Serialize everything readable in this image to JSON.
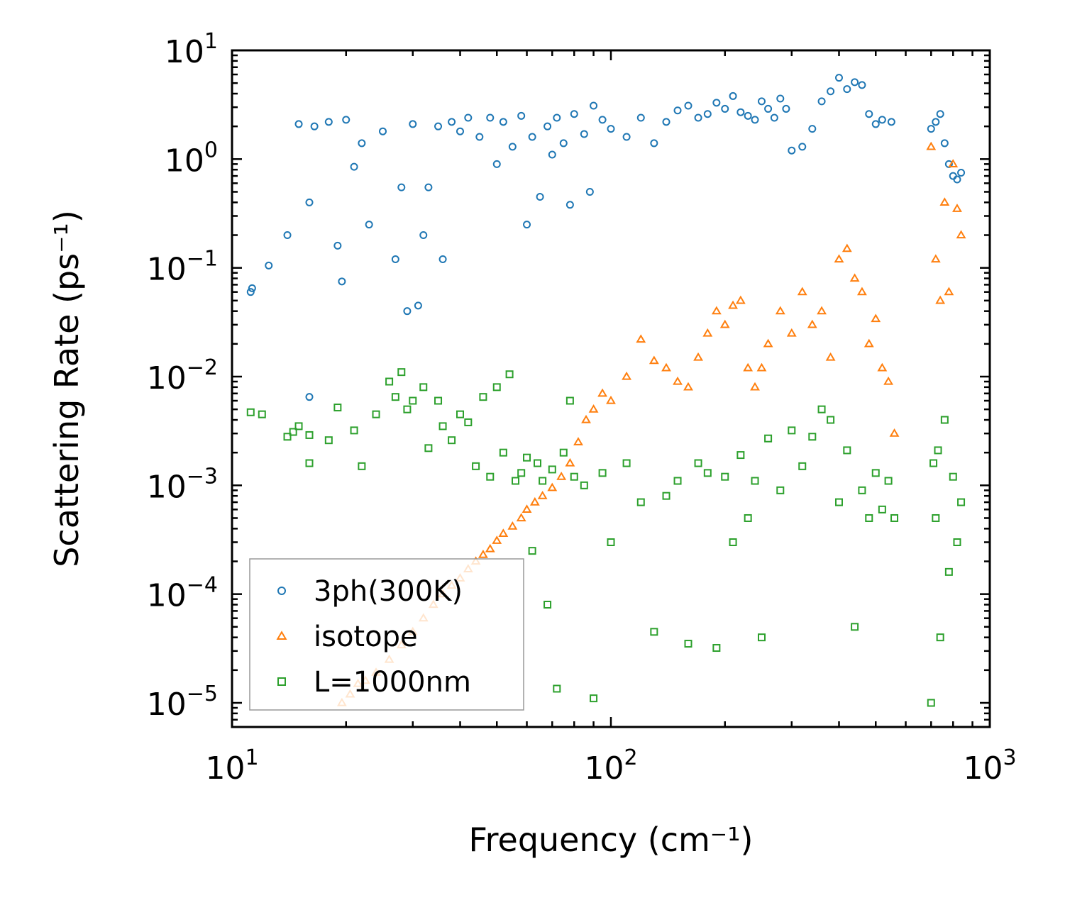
{
  "chart_data": {
    "type": "scatter",
    "title": "",
    "xlabel": "Frequency (cm⁻¹)",
    "ylabel": "Scattering Rate (ps⁻¹)",
    "xscale": "log",
    "yscale": "log",
    "xlim": [
      10,
      1000
    ],
    "ylim": [
      6e-06,
      10
    ],
    "x_ticks": [
      {
        "value": 10,
        "base": "10",
        "exp": "1"
      },
      {
        "value": 100,
        "base": "10",
        "exp": "2"
      },
      {
        "value": 1000,
        "base": "10",
        "exp": "3"
      }
    ],
    "y_ticks": [
      {
        "value": 10,
        "base": "10",
        "exp": "1"
      },
      {
        "value": 1,
        "base": "10",
        "exp": "0"
      },
      {
        "value": 0.1,
        "base": "10",
        "exp": "−1"
      },
      {
        "value": 0.01,
        "base": "10",
        "exp": "−2"
      },
      {
        "value": 0.001,
        "base": "10",
        "exp": "−3"
      },
      {
        "value": 0.0001,
        "base": "10",
        "exp": "−4"
      },
      {
        "value": 1e-05,
        "base": "10",
        "exp": "−5"
      }
    ],
    "grid": false,
    "legend_position": "bottom-left",
    "series": [
      {
        "name": "3ph(300K)",
        "marker": "circle",
        "color": "#1f77b4",
        "x": [
          11.2,
          11.3,
          12.5,
          14,
          15,
          16,
          16,
          16.5,
          18,
          19,
          19.5,
          20,
          21,
          22,
          23,
          25,
          27,
          28,
          29,
          30,
          31,
          32,
          33,
          35,
          36,
          38,
          40,
          42,
          45,
          48,
          50,
          52,
          55,
          58,
          60,
          62,
          65,
          68,
          70,
          72,
          75,
          78,
          80,
          85,
          88,
          90,
          95,
          100,
          110,
          120,
          130,
          140,
          150,
          160,
          170,
          180,
          190,
          200,
          210,
          220,
          230,
          240,
          250,
          260,
          270,
          280,
          290,
          300,
          320,
          340,
          360,
          380,
          400,
          420,
          440,
          460,
          480,
          500,
          520,
          550,
          700,
          720,
          740,
          760,
          780,
          800,
          820,
          840
        ],
        "y": [
          0.06,
          0.065,
          0.105,
          0.2,
          2.1,
          0.4,
          0.0065,
          2.0,
          2.2,
          0.16,
          0.075,
          2.3,
          0.85,
          1.4,
          0.25,
          1.8,
          0.12,
          0.55,
          0.04,
          2.1,
          0.045,
          0.2,
          0.55,
          2.0,
          0.12,
          2.2,
          1.8,
          2.4,
          1.6,
          2.4,
          0.9,
          2.2,
          1.3,
          2.5,
          0.25,
          1.6,
          0.45,
          2.0,
          1.1,
          2.4,
          1.4,
          0.38,
          2.6,
          1.7,
          0.5,
          3.1,
          2.3,
          1.9,
          1.6,
          2.4,
          1.4,
          2.2,
          2.8,
          3.1,
          2.4,
          2.6,
          3.3,
          2.9,
          3.8,
          2.7,
          2.5,
          2.3,
          3.4,
          2.9,
          2.4,
          3.6,
          2.9,
          1.2,
          1.3,
          1.9,
          3.4,
          4.2,
          5.6,
          4.4,
          5.1,
          4.8,
          2.6,
          2.1,
          2.3,
          2.2,
          1.9,
          2.2,
          2.6,
          1.4,
          0.9,
          0.7,
          0.65,
          0.75
        ]
      },
      {
        "name": "isotope",
        "marker": "triangle",
        "color": "#ff7f0e",
        "x": [
          19.5,
          20.5,
          21.5,
          22.5,
          24,
          26,
          28,
          30,
          32,
          34,
          36,
          38,
          40,
          42,
          44,
          46,
          48,
          50,
          52,
          55,
          58,
          60,
          63,
          66,
          70,
          74,
          78,
          82,
          86,
          90,
          95,
          100,
          110,
          120,
          130,
          140,
          150,
          160,
          170,
          180,
          190,
          200,
          210,
          220,
          230,
          240,
          250,
          260,
          280,
          300,
          320,
          340,
          360,
          380,
          400,
          420,
          440,
          460,
          480,
          500,
          520,
          540,
          560,
          700,
          720,
          740,
          760,
          780,
          800,
          820,
          840
        ],
        "y": [
          1e-05,
          1.2e-05,
          1.5e-05,
          1.6e-05,
          1.9e-05,
          2.5e-05,
          3.4e-05,
          4.5e-05,
          6e-05,
          8e-05,
          0.0001,
          0.00012,
          0.00014,
          0.00017,
          0.0002,
          0.00023,
          0.00026,
          0.00031,
          0.00036,
          0.00042,
          0.0005,
          0.0006,
          0.0007,
          0.0008,
          0.00095,
          0.0012,
          0.0016,
          0.0025,
          0.004,
          0.005,
          0.007,
          0.006,
          0.01,
          0.022,
          0.014,
          0.012,
          0.009,
          0.008,
          0.015,
          0.025,
          0.04,
          0.03,
          0.045,
          0.05,
          0.012,
          0.008,
          0.012,
          0.02,
          0.04,
          0.025,
          0.06,
          0.03,
          0.04,
          0.015,
          0.12,
          0.15,
          0.08,
          0.06,
          0.02,
          0.034,
          0.012,
          0.009,
          0.003,
          1.3,
          0.12,
          0.05,
          0.4,
          0.06,
          0.9,
          0.35,
          0.2
        ]
      },
      {
        "name": "L=1000nm",
        "marker": "square",
        "color": "#2ca02c",
        "x": [
          11.2,
          12,
          14,
          14.5,
          15,
          16,
          16,
          18,
          19,
          21,
          22,
          24,
          26,
          27,
          28,
          29,
          30,
          32,
          33,
          35,
          36,
          38,
          40,
          42,
          44,
          46,
          48,
          50,
          52,
          54,
          56,
          58,
          60,
          62,
          64,
          66,
          68,
          70,
          72,
          75,
          78,
          80,
          85,
          90,
          95,
          100,
          110,
          120,
          130,
          140,
          150,
          160,
          170,
          180,
          190,
          200,
          210,
          220,
          230,
          240,
          250,
          260,
          280,
          300,
          320,
          340,
          360,
          380,
          400,
          420,
          440,
          460,
          480,
          500,
          520,
          540,
          560,
          700,
          710,
          720,
          730,
          740,
          760,
          780,
          800,
          820,
          840
        ],
        "y": [
          0.0047,
          0.0045,
          0.0028,
          0.0031,
          0.0035,
          0.0016,
          0.0029,
          0.0026,
          0.0052,
          0.0032,
          0.0015,
          0.0045,
          0.009,
          0.0065,
          0.011,
          0.005,
          0.006,
          0.008,
          0.0022,
          0.006,
          0.0035,
          0.0026,
          0.0045,
          0.0038,
          0.0015,
          0.0065,
          0.0012,
          0.008,
          0.002,
          0.0105,
          0.0011,
          0.0013,
          0.0018,
          0.00025,
          0.0016,
          0.0011,
          8e-05,
          0.0014,
          1.35e-05,
          0.002,
          0.006,
          0.0012,
          0.001,
          1.1e-05,
          0.0013,
          0.0003,
          0.0016,
          0.0007,
          4.5e-05,
          0.0008,
          0.0011,
          3.5e-05,
          0.0016,
          0.0013,
          3.2e-05,
          0.0012,
          0.0003,
          0.0019,
          0.0005,
          0.0011,
          4e-05,
          0.0027,
          0.0009,
          0.0032,
          0.0015,
          0.0028,
          0.005,
          0.004,
          0.0007,
          0.0021,
          5e-05,
          0.0009,
          0.0005,
          0.0013,
          0.0006,
          0.0011,
          0.0005,
          1e-05,
          0.0016,
          0.0005,
          0.0021,
          4e-05,
          0.004,
          0.00016,
          0.0012,
          0.0003,
          0.0007
        ]
      }
    ]
  }
}
